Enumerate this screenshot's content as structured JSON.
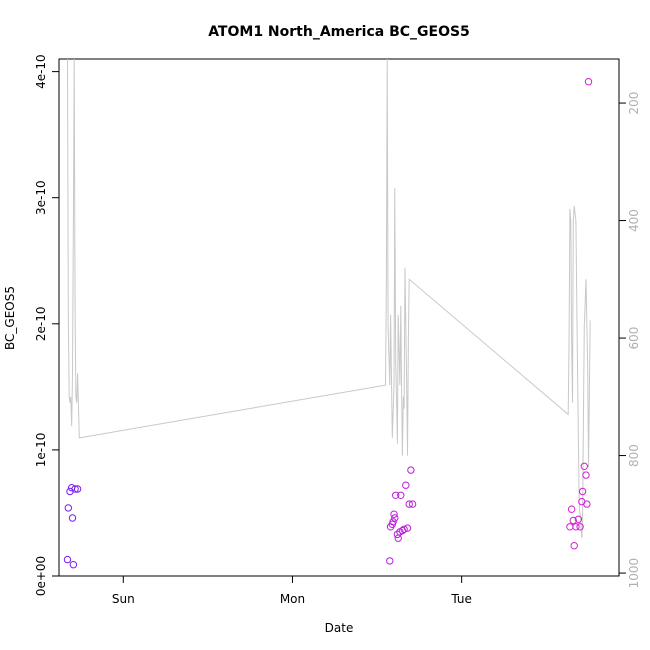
{
  "chart_data": {
    "type": "scatter",
    "title": "ATOM1 North_America BC_GEOS5",
    "xlabel": "Date",
    "ylabel": "BC_GEOS5",
    "x_ticks": [
      "Sun",
      "Mon",
      "Tue"
    ],
    "x_tick_values": [
      1,
      2,
      3
    ],
    "xlim": [
      0.62,
      3.93
    ],
    "ylim": [
      0,
      4.1e-10
    ],
    "y_ticks": [
      0,
      1e-10,
      2e-10,
      3e-10,
      4e-10
    ],
    "y_tick_labels": [
      "0e+00",
      "1e-10",
      "2e-10",
      "3e-10",
      "4e-10"
    ],
    "y2_ticks": [
      200,
      400,
      600,
      800,
      1000
    ],
    "y2_tick_labels": [
      "200",
      "400",
      "600",
      "800",
      "1000"
    ],
    "y2lim": [
      1005,
      125
    ],
    "grid": false,
    "series": [
      {
        "type": "scatter",
        "color": "#d41fd4",
        "points": [
          [
            0.67,
            1.3e-11
          ],
          [
            0.675,
            5.4e-11
          ],
          [
            0.685,
            6.7e-11
          ],
          [
            0.695,
            7e-11
          ],
          [
            0.7,
            4.6e-11
          ],
          [
            0.705,
            9e-12
          ],
          [
            0.715,
            6.9e-11
          ],
          [
            0.73,
            6.9e-11
          ],
          [
            2.575,
            1.2e-11
          ],
          [
            2.58,
            3.9e-11
          ],
          [
            2.59,
            4.1e-11
          ],
          [
            2.595,
            4.3e-11
          ],
          [
            2.6,
            4.9e-11
          ],
          [
            2.605,
            4.6e-11
          ],
          [
            2.61,
            6.4e-11
          ],
          [
            2.62,
            3.3e-11
          ],
          [
            2.625,
            3e-11
          ],
          [
            2.635,
            3.5e-11
          ],
          [
            2.64,
            6.4e-11
          ],
          [
            2.65,
            3.6e-11
          ],
          [
            2.66,
            3.7e-11
          ],
          [
            2.67,
            7.2e-11
          ],
          [
            2.68,
            3.8e-11
          ],
          [
            2.69,
            5.7e-11
          ],
          [
            2.7,
            8.4e-11
          ],
          [
            2.71,
            5.7e-11
          ],
          [
            3.64,
            3.9e-11
          ],
          [
            3.65,
            5.3e-11
          ],
          [
            3.66,
            4.4e-11
          ],
          [
            3.665,
            2.4e-11
          ],
          [
            3.675,
            3.9e-11
          ],
          [
            3.69,
            4.5e-11
          ],
          [
            3.7,
            3.9e-11
          ],
          [
            3.71,
            5.9e-11
          ],
          [
            3.715,
            6.7e-11
          ],
          [
            3.725,
            8.7e-11
          ],
          [
            3.735,
            8e-11
          ],
          [
            3.74,
            5.7e-11
          ],
          [
            3.75,
            3.92e-10
          ]
        ]
      },
      {
        "type": "line",
        "axis": "right",
        "color": "#c8c8c8",
        "points": [
          [
            0.67,
            125
          ],
          [
            0.675,
            560
          ],
          [
            0.68,
            700
          ],
          [
            0.685,
            710
          ],
          [
            0.69,
            700
          ],
          [
            0.695,
            750
          ],
          [
            0.7,
            660
          ],
          [
            0.705,
            400
          ],
          [
            0.71,
            125
          ],
          [
            0.715,
            560
          ],
          [
            0.72,
            700
          ],
          [
            0.725,
            710
          ],
          [
            0.73,
            660
          ],
          [
            0.74,
            770
          ],
          [
            2.55,
            680
          ],
          [
            2.555,
            500
          ],
          [
            2.56,
            125
          ],
          [
            2.565,
            580
          ],
          [
            2.575,
            680
          ],
          [
            2.58,
            560
          ],
          [
            2.59,
            770
          ],
          [
            2.6,
            680
          ],
          [
            2.605,
            345
          ],
          [
            2.61,
            640
          ],
          [
            2.615,
            700
          ],
          [
            2.62,
            780
          ],
          [
            2.625,
            560
          ],
          [
            2.635,
            680
          ],
          [
            2.64,
            545
          ],
          [
            2.645,
            690
          ],
          [
            2.65,
            800
          ],
          [
            2.655,
            700
          ],
          [
            2.66,
            720
          ],
          [
            2.665,
            480
          ],
          [
            2.67,
            580
          ],
          [
            2.675,
            680
          ],
          [
            2.68,
            800
          ],
          [
            2.685,
            600
          ],
          [
            2.69,
            500
          ],
          [
            3.63,
            730
          ],
          [
            3.635,
            600
          ],
          [
            3.64,
            380
          ],
          [
            3.645,
            400
          ],
          [
            3.65,
            600
          ],
          [
            3.655,
            710
          ],
          [
            3.66,
            400
          ],
          [
            3.665,
            375
          ],
          [
            3.675,
            400
          ],
          [
            3.685,
            650
          ],
          [
            3.695,
            880
          ],
          [
            3.71,
            940
          ],
          [
            3.715,
            910
          ],
          [
            3.72,
            720
          ],
          [
            3.725,
            580
          ],
          [
            3.735,
            500
          ],
          [
            3.745,
            650
          ],
          [
            3.75,
            820
          ],
          [
            3.76,
            570
          ]
        ]
      }
    ]
  }
}
